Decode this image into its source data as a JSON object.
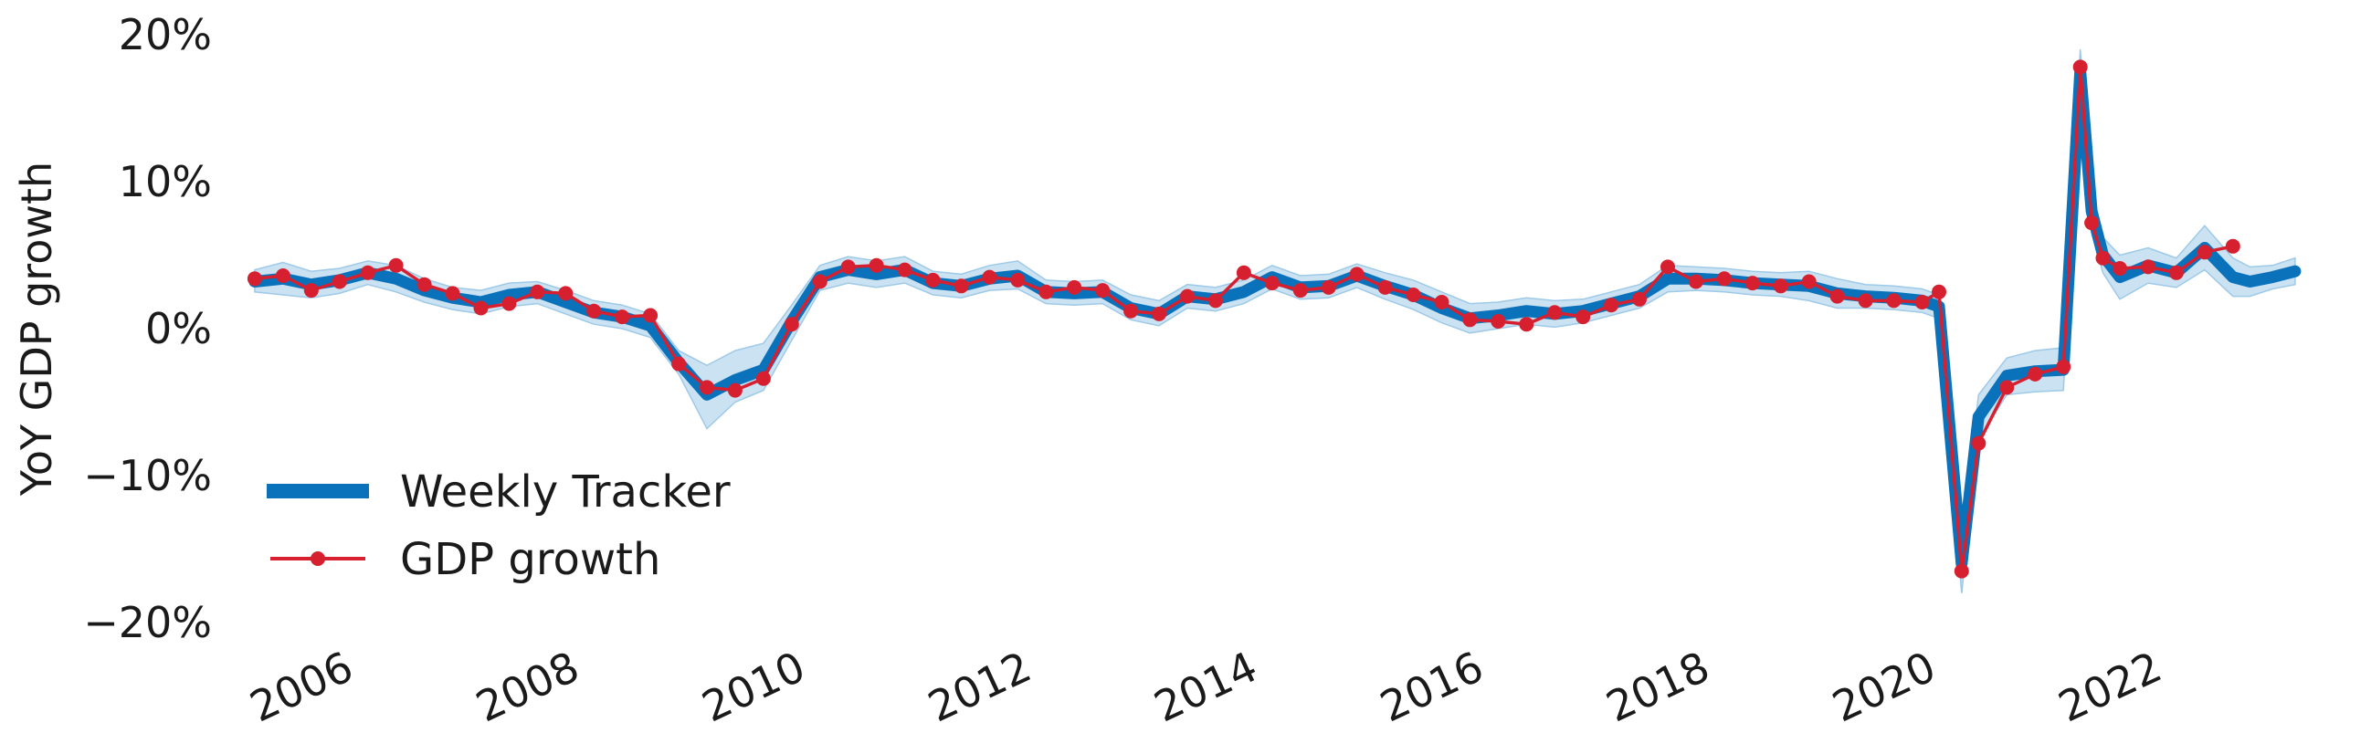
{
  "chart_data": {
    "type": "line",
    "title": "",
    "xlabel": "",
    "ylabel": "YoY GDP growth",
    "xlim": [
      2005.0,
      2023.6
    ],
    "ylim": [
      -20,
      20
    ],
    "x_ticks": [
      2006,
      2008,
      2010,
      2012,
      2014,
      2016,
      2018,
      2020,
      2022
    ],
    "x_tick_labels": [
      "2006",
      "2008",
      "2010",
      "2012",
      "2014",
      "2016",
      "2018",
      "2020",
      "2022"
    ],
    "y_ticks": [
      -20,
      -10,
      0,
      10,
      20
    ],
    "y_tick_labels": [
      "−20%",
      "−10%",
      "0%",
      "10%",
      "20%"
    ],
    "grid": false,
    "legend_position": "lower-left",
    "colors": {
      "tracker": "#0a72bb",
      "band": "#9ecae8",
      "gdp": "#d62030"
    },
    "legend": [
      {
        "name": "Weekly Tracker",
        "style": "thick-line"
      },
      {
        "name": "GDP growth",
        "style": "line-with-markers"
      }
    ],
    "series": [
      {
        "name": "Weekly Tracker",
        "kind": "line",
        "x": [
          2005.25,
          2005.5,
          2005.75,
          2006.0,
          2006.25,
          2006.5,
          2006.75,
          2007.0,
          2007.25,
          2007.5,
          2007.75,
          2008.0,
          2008.25,
          2008.5,
          2008.75,
          2009.0,
          2009.25,
          2009.5,
          2009.75,
          2010.0,
          2010.25,
          2010.5,
          2010.75,
          2011.0,
          2011.25,
          2011.5,
          2011.75,
          2012.0,
          2012.25,
          2012.5,
          2012.75,
          2013.0,
          2013.25,
          2013.5,
          2013.75,
          2014.0,
          2014.25,
          2014.5,
          2014.75,
          2015.0,
          2015.25,
          2015.5,
          2015.75,
          2016.0,
          2016.25,
          2016.5,
          2016.75,
          2017.0,
          2017.25,
          2017.5,
          2017.75,
          2018.0,
          2018.25,
          2018.5,
          2018.75,
          2019.0,
          2019.25,
          2019.5,
          2019.75,
          2020.0,
          2020.15,
          2020.35,
          2020.5,
          2020.75,
          2021.0,
          2021.25,
          2021.4,
          2021.5,
          2021.6,
          2021.75,
          2022.0,
          2022.25,
          2022.5,
          2022.75,
          2022.9,
          2023.1,
          2023.3
        ],
        "values": [
          3.2,
          3.4,
          3.0,
          3.3,
          3.8,
          3.4,
          2.6,
          2.1,
          1.8,
          2.3,
          2.5,
          1.8,
          1.1,
          0.8,
          0.2,
          -2.3,
          -4.5,
          -3.5,
          -2.8,
          0.5,
          3.5,
          4.0,
          3.7,
          4.0,
          3.1,
          2.9,
          3.4,
          3.6,
          2.5,
          2.4,
          2.5,
          1.4,
          1.0,
          2.2,
          2.0,
          2.5,
          3.5,
          2.8,
          2.9,
          3.6,
          2.9,
          2.3,
          1.4,
          0.7,
          0.9,
          1.2,
          1.0,
          1.2,
          1.7,
          2.2,
          3.4,
          3.4,
          3.3,
          3.1,
          3.0,
          2.9,
          2.4,
          2.2,
          2.1,
          1.9,
          1.5,
          -16.0,
          -6.0,
          -3.2,
          -2.9,
          -2.8,
          17.5,
          8.0,
          5.0,
          3.5,
          4.3,
          3.8,
          5.5,
          3.5,
          3.2,
          3.5,
          3.9
        ]
      },
      {
        "name": "Tracker band upper",
        "kind": "band-upper",
        "x": [
          2005.25,
          2005.5,
          2005.75,
          2006.0,
          2006.25,
          2006.5,
          2006.75,
          2007.0,
          2007.25,
          2007.5,
          2007.75,
          2008.0,
          2008.25,
          2008.5,
          2008.75,
          2009.0,
          2009.25,
          2009.5,
          2009.75,
          2010.0,
          2010.25,
          2010.5,
          2010.75,
          2011.0,
          2011.25,
          2011.5,
          2011.75,
          2012.0,
          2012.25,
          2012.5,
          2012.75,
          2013.0,
          2013.25,
          2013.5,
          2013.75,
          2014.0,
          2014.25,
          2014.5,
          2014.75,
          2015.0,
          2015.25,
          2015.5,
          2015.75,
          2016.0,
          2016.25,
          2016.5,
          2016.75,
          2017.0,
          2017.25,
          2017.5,
          2017.75,
          2018.0,
          2018.25,
          2018.5,
          2018.75,
          2019.0,
          2019.25,
          2019.5,
          2019.75,
          2020.0,
          2020.15,
          2020.35,
          2020.5,
          2020.75,
          2021.0,
          2021.25,
          2021.4,
          2021.5,
          2021.6,
          2021.75,
          2022.0,
          2022.25,
          2022.5,
          2022.75,
          2022.9,
          2023.1,
          2023.3
        ],
        "values": [
          4.0,
          4.5,
          3.9,
          4.1,
          4.6,
          4.3,
          3.4,
          2.8,
          2.6,
          3.1,
          3.2,
          2.6,
          1.9,
          1.6,
          1.0,
          -1.5,
          -2.5,
          -1.5,
          -1.0,
          1.6,
          4.3,
          4.9,
          4.6,
          4.9,
          3.9,
          3.7,
          4.3,
          4.6,
          3.3,
          3.2,
          3.3,
          2.3,
          1.9,
          3.0,
          2.8,
          3.3,
          4.3,
          3.6,
          3.7,
          4.4,
          3.8,
          3.3,
          2.5,
          1.7,
          1.8,
          2.1,
          1.9,
          2.0,
          2.5,
          3.0,
          4.3,
          4.2,
          4.1,
          3.9,
          3.8,
          3.9,
          3.4,
          3.0,
          2.9,
          2.7,
          2.3,
          -14.0,
          -4.5,
          -2.0,
          -1.5,
          -1.3,
          19.0,
          9.5,
          6.2,
          5.0,
          5.5,
          4.8,
          7.0,
          4.8,
          4.2,
          4.3,
          4.8
        ]
      },
      {
        "name": "Tracker band lower",
        "kind": "band-lower",
        "x": [
          2005.25,
          2005.5,
          2005.75,
          2006.0,
          2006.25,
          2006.5,
          2006.75,
          2007.0,
          2007.25,
          2007.5,
          2007.75,
          2008.0,
          2008.25,
          2008.5,
          2008.75,
          2009.0,
          2009.25,
          2009.5,
          2009.75,
          2010.0,
          2010.25,
          2010.5,
          2010.75,
          2011.0,
          2011.25,
          2011.5,
          2011.75,
          2012.0,
          2012.25,
          2012.5,
          2012.75,
          2013.0,
          2013.25,
          2013.5,
          2013.75,
          2014.0,
          2014.25,
          2014.5,
          2014.75,
          2015.0,
          2015.25,
          2015.5,
          2015.75,
          2016.0,
          2016.25,
          2016.5,
          2016.75,
          2017.0,
          2017.25,
          2017.5,
          2017.75,
          2018.0,
          2018.25,
          2018.5,
          2018.75,
          2019.0,
          2019.25,
          2019.5,
          2019.75,
          2020.0,
          2020.15,
          2020.35,
          2020.5,
          2020.75,
          2021.0,
          2021.25,
          2021.4,
          2021.5,
          2021.6,
          2021.75,
          2022.0,
          2022.25,
          2022.5,
          2022.75,
          2022.9,
          2023.1,
          2023.3
        ],
        "values": [
          2.5,
          2.3,
          2.1,
          2.4,
          3.0,
          2.5,
          1.8,
          1.3,
          1.0,
          1.5,
          1.7,
          1.0,
          0.3,
          0.0,
          -0.6,
          -3.1,
          -6.8,
          -5.0,
          -4.2,
          -0.8,
          2.6,
          3.1,
          2.8,
          3.1,
          2.3,
          2.1,
          2.6,
          2.7,
          1.7,
          1.6,
          1.7,
          0.6,
          0.2,
          1.4,
          1.2,
          1.7,
          2.7,
          2.0,
          2.1,
          2.8,
          2.0,
          1.3,
          0.4,
          -0.3,
          0.0,
          0.3,
          0.1,
          0.4,
          0.9,
          1.4,
          2.5,
          2.6,
          2.5,
          2.3,
          2.2,
          1.9,
          1.4,
          1.4,
          1.3,
          1.1,
          0.7,
          -18.0,
          -7.5,
          -4.5,
          -4.3,
          -4.2,
          16.0,
          6.5,
          3.8,
          2.0,
          3.1,
          2.8,
          4.0,
          2.2,
          2.2,
          2.7,
          3.0
        ]
      },
      {
        "name": "GDP growth",
        "kind": "line-markers",
        "x": [
          2005.25,
          2005.5,
          2005.75,
          2006.0,
          2006.25,
          2006.5,
          2006.75,
          2007.0,
          2007.25,
          2007.5,
          2007.75,
          2008.0,
          2008.25,
          2008.5,
          2008.75,
          2009.0,
          2009.25,
          2009.5,
          2009.75,
          2010.0,
          2010.25,
          2010.5,
          2010.75,
          2011.0,
          2011.25,
          2011.5,
          2011.75,
          2012.0,
          2012.25,
          2012.5,
          2012.75,
          2013.0,
          2013.25,
          2013.5,
          2013.75,
          2014.0,
          2014.25,
          2014.5,
          2014.75,
          2015.0,
          2015.25,
          2015.5,
          2015.75,
          2016.0,
          2016.25,
          2016.5,
          2016.75,
          2017.0,
          2017.25,
          2017.5,
          2017.75,
          2018.0,
          2018.25,
          2018.5,
          2018.75,
          2019.0,
          2019.25,
          2019.5,
          2019.75,
          2020.0,
          2020.15,
          2020.35,
          2020.5,
          2020.75,
          2021.0,
          2021.25,
          2021.4,
          2021.5,
          2021.6,
          2021.75,
          2022.0,
          2022.25,
          2022.5,
          2022.75
        ],
        "values": [
          3.4,
          3.6,
          2.6,
          3.2,
          3.8,
          4.3,
          3.0,
          2.4,
          1.4,
          1.7,
          2.5,
          2.4,
          1.2,
          0.8,
          0.9,
          -2.4,
          -4.0,
          -4.2,
          -3.4,
          0.3,
          3.2,
          4.2,
          4.3,
          4.0,
          3.3,
          2.9,
          3.5,
          3.3,
          2.5,
          2.8,
          2.6,
          1.2,
          1.0,
          2.2,
          1.9,
          3.8,
          3.1,
          2.6,
          2.8,
          3.7,
          2.8,
          2.3,
          1.8,
          0.6,
          0.5,
          0.3,
          1.1,
          0.8,
          1.6,
          2.0,
          4.2,
          3.2,
          3.4,
          3.1,
          2.9,
          3.2,
          2.2,
          1.9,
          1.9,
          1.8,
          2.5,
          -16.5,
          -7.8,
          -4.0,
          -3.1,
          -2.6,
          17.8,
          7.2,
          4.8,
          4.1,
          4.2,
          3.8,
          5.2,
          5.6
        ]
      }
    ]
  }
}
